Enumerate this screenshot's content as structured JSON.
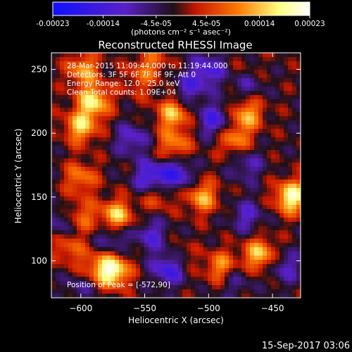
{
  "colorbar": {
    "tick_labels": [
      "-0.00023",
      "-0.00014",
      "-4.5e-05",
      "4.5e-05",
      "0.00014",
      "0.00023"
    ],
    "tick_values": [
      -0.00023,
      -0.00014,
      -4.5e-05,
      4.5e-05,
      0.00014,
      0.00023
    ],
    "range": [
      -0.00023,
      0.00023
    ],
    "units_label": "(photons cm⁻² s⁻¹ asec⁻²)",
    "colors": [
      "#1010ff",
      "#5a20c8",
      "#201018",
      "#c81800",
      "#ff7800",
      "#ffff80",
      "#ffffff"
    ]
  },
  "chart_data": {
    "type": "heatmap",
    "title": "Reconstructed RHESSI Image",
    "xlabel": "Heliocentric X (arcsec)",
    "ylabel": "Heliocentric Y (arcsec)",
    "xlim": [
      -623,
      -428
    ],
    "ylim": [
      71,
      263
    ],
    "xticks": [
      -600,
      -550,
      -500,
      -450
    ],
    "yticks": [
      100,
      150,
      200,
      250
    ],
    "xtick_labels": [
      "−600",
      "−550",
      "−500",
      "−450"
    ],
    "ytick_labels": [
      "100",
      "150",
      "200",
      "250"
    ],
    "info_lines": [
      "28-Mar-2015 11:09:44.000 to 11:19:44.000",
      "Detectors: 3F 5F 6F 7F 8F 9F, Att 0",
      "Energy Range: 12.0 - 25.0 keV",
      "Clean     Total counts: 1.09E+04"
    ],
    "peak_label": "Position of Peak = [-572,90]",
    "peak": [
      -572,
      90
    ],
    "bright_regions": [
      {
        "x": -575,
        "y": 92,
        "value": 0.00022
      },
      {
        "x": -590,
        "y": 225,
        "value": 0.00018
      },
      {
        "x": -600,
        "y": 205,
        "value": 0.00016
      },
      {
        "x": -572,
        "y": 135,
        "value": 0.00017
      },
      {
        "x": -600,
        "y": 165,
        "value": 0.00011
      },
      {
        "x": -528,
        "y": 215,
        "value": 0.00015
      },
      {
        "x": -527,
        "y": 190,
        "value": 0.00012
      },
      {
        "x": -470,
        "y": 215,
        "value": 0.00014
      },
      {
        "x": -480,
        "y": 195,
        "value": 0.00012
      },
      {
        "x": -435,
        "y": 150,
        "value": 0.00021
      },
      {
        "x": -505,
        "y": 150,
        "value": 0.00014
      },
      {
        "x": -540,
        "y": 152,
        "value": 9e-05
      },
      {
        "x": -600,
        "y": 135,
        "value": 0.0001
      },
      {
        "x": -460,
        "y": 105,
        "value": 0.00016
      },
      {
        "x": -490,
        "y": 95,
        "value": 0.00013
      },
      {
        "x": -525,
        "y": 100,
        "value": 0.0001
      },
      {
        "x": -610,
        "y": 110,
        "value": 9e-05
      },
      {
        "x": -598,
        "y": 250,
        "value": 0.00013
      },
      {
        "x": -470,
        "y": 245,
        "value": 8e-05
      },
      {
        "x": -545,
        "y": 255,
        "value": 9e-05
      },
      {
        "x": -555,
        "y": 240,
        "value": 6e-05
      },
      {
        "x": -590,
        "y": 95,
        "value": 8e-05
      }
    ],
    "dark_regions": [
      {
        "x": -530,
        "y": 95,
        "value": -0.0002
      },
      {
        "x": -545,
        "y": 165,
        "value": -0.00015
      },
      {
        "x": -525,
        "y": 168,
        "value": -0.00014
      },
      {
        "x": -470,
        "y": 240,
        "value": -0.00012
      },
      {
        "x": -500,
        "y": 250,
        "value": -0.00012
      },
      {
        "x": -495,
        "y": 210,
        "value": -0.00013
      },
      {
        "x": -515,
        "y": 235,
        "value": -0.0001
      },
      {
        "x": -560,
        "y": 195,
        "value": -0.0001
      },
      {
        "x": -470,
        "y": 175,
        "value": -8e-05
      },
      {
        "x": -470,
        "y": 135,
        "value": -9e-05
      },
      {
        "x": -615,
        "y": 130,
        "value": -8e-05
      },
      {
        "x": -575,
        "y": 118,
        "value": -9e-05
      },
      {
        "x": -440,
        "y": 95,
        "value": -9e-05
      },
      {
        "x": -545,
        "y": 120,
        "value": -0.0001
      },
      {
        "x": -480,
        "y": 85,
        "value": -7e-05
      },
      {
        "x": -600,
        "y": 80,
        "value": -6e-05
      }
    ]
  },
  "footer": {
    "timestamp": "15-Sep-2017 03:06"
  }
}
